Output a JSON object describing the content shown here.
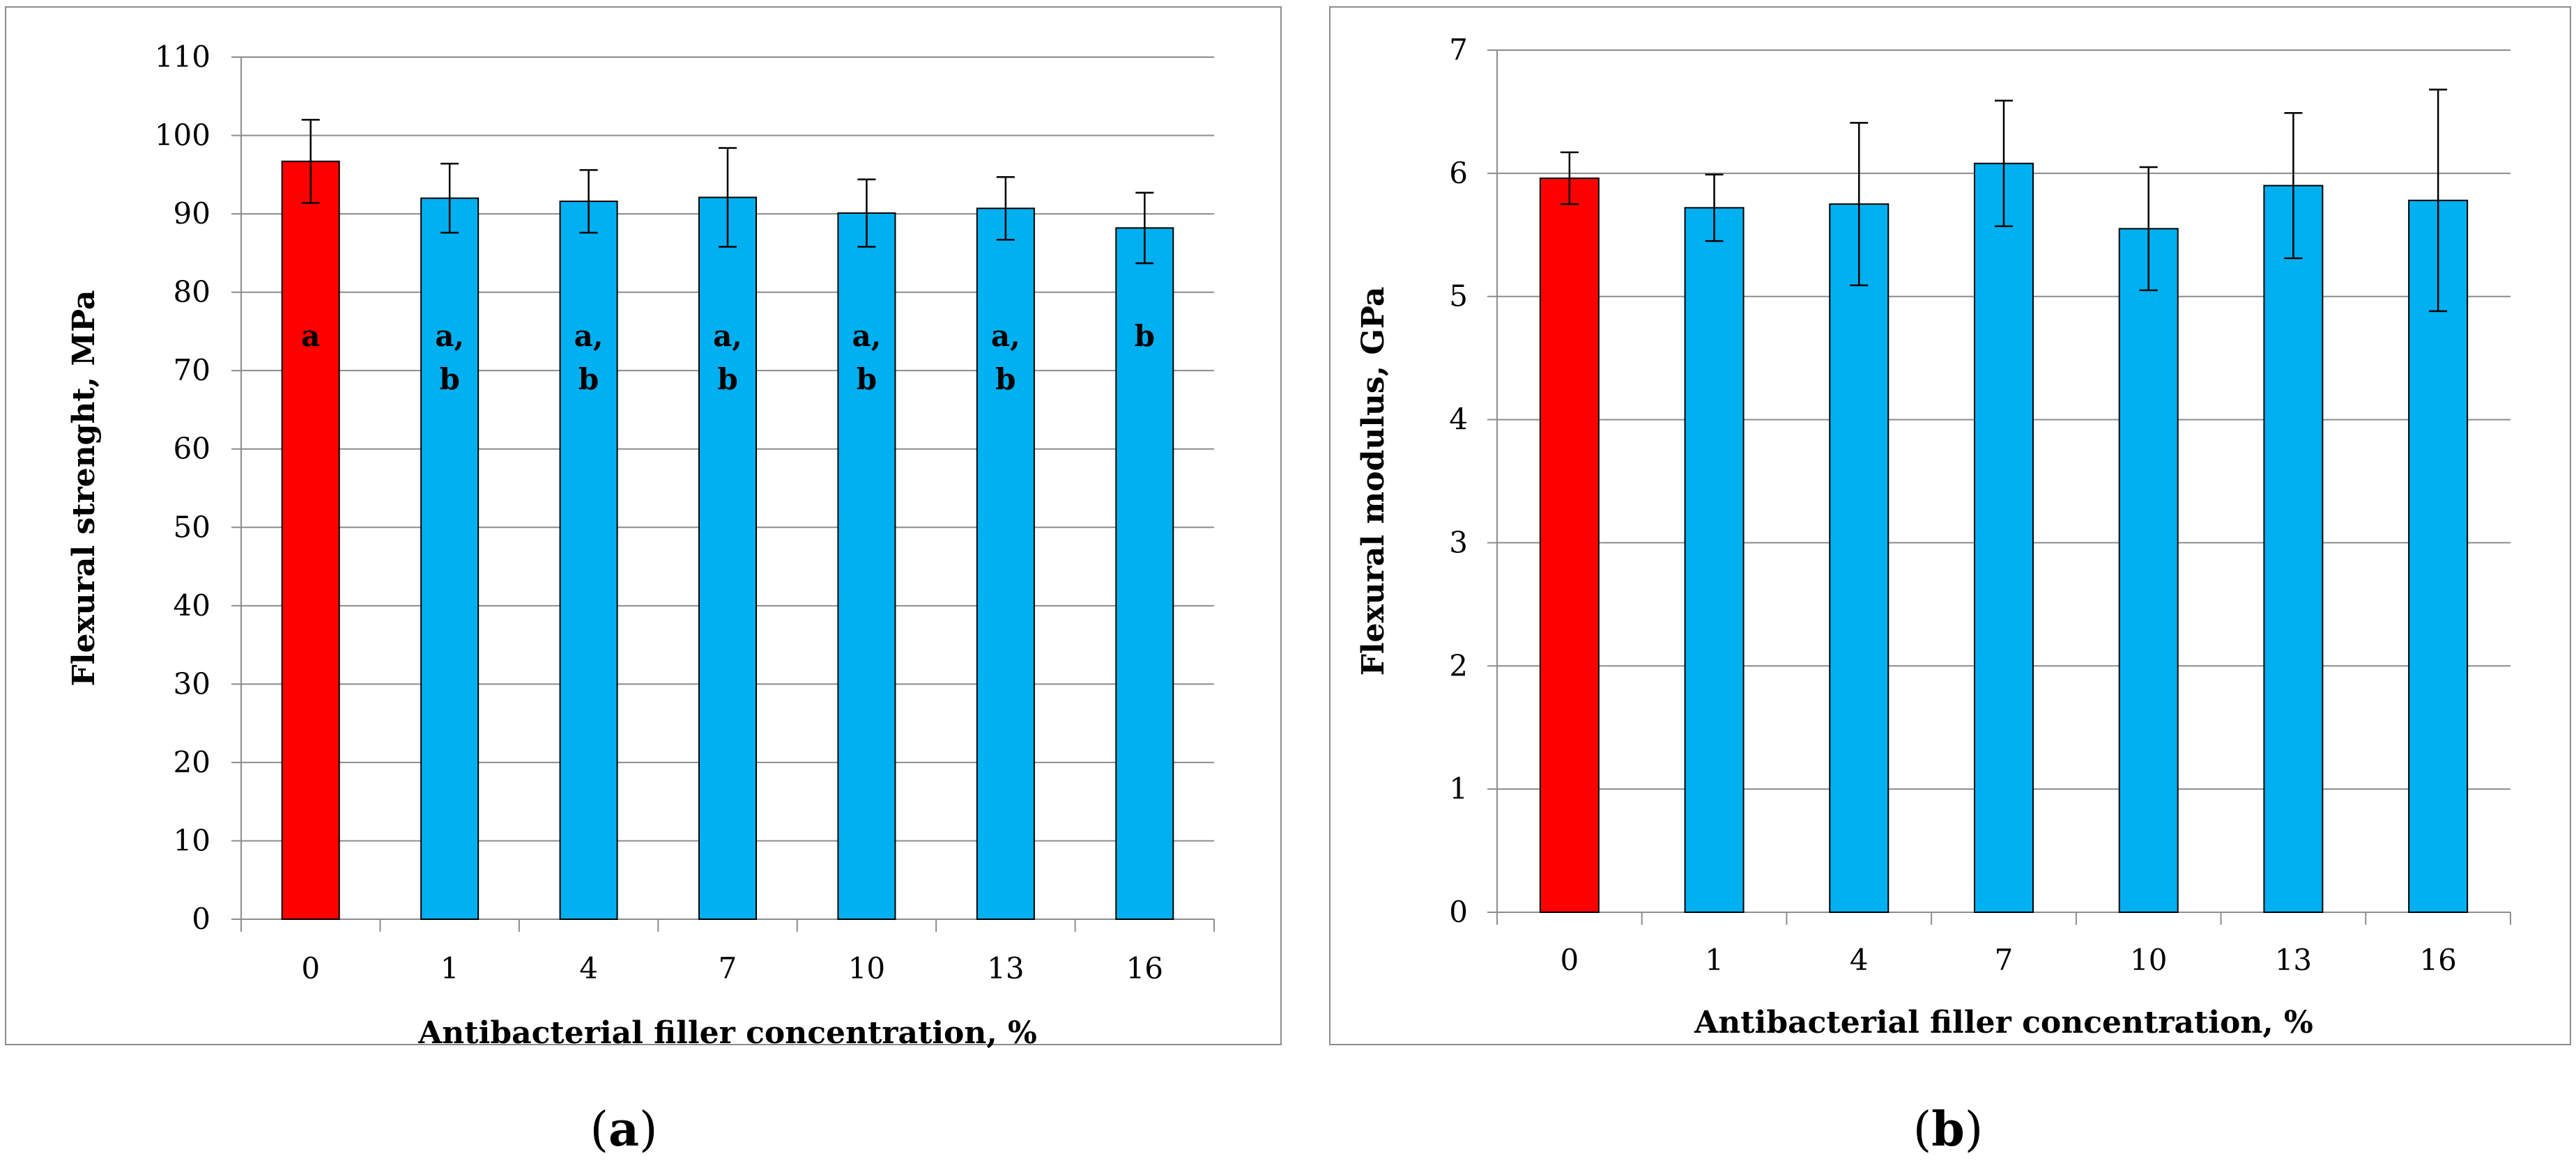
{
  "figure": {
    "panels": [
      "a",
      "b"
    ]
  },
  "colors": {
    "control": "#ff0000",
    "filler": "#00b0f0",
    "grid": "#8c8c8c",
    "frame": "#8c8c8c"
  },
  "chart_data": [
    {
      "type": "bar",
      "panel": "a",
      "categories": [
        "0",
        "1",
        "4",
        "7",
        "10",
        "13",
        "16"
      ],
      "values": [
        96.7,
        92.0,
        91.6,
        92.1,
        90.1,
        90.7,
        88.2
      ],
      "errors": [
        5.3,
        4.4,
        4.0,
        6.3,
        4.3,
        4.0,
        4.5
      ],
      "significance": [
        "a",
        "a,\nb",
        "a,\nb",
        "a,\nb",
        "a,\nb",
        "a,\nb",
        "b"
      ],
      "xlabel": "Antibacterial filler concentration, %",
      "ylabel": "Flexural strenght, MPa",
      "ylim": [
        0,
        110
      ],
      "yticks": [
        0,
        10,
        20,
        30,
        40,
        50,
        60,
        70,
        80,
        90,
        100,
        110
      ],
      "grid": true,
      "caption": "(a)"
    },
    {
      "type": "bar",
      "panel": "b",
      "categories": [
        "0",
        "1",
        "4",
        "7",
        "10",
        "13",
        "16"
      ],
      "values": [
        5.96,
        5.72,
        5.75,
        6.08,
        5.55,
        5.9,
        5.78
      ],
      "errors": [
        0.21,
        0.27,
        0.66,
        0.51,
        0.5,
        0.59,
        0.9
      ],
      "xlabel": "Antibacterial filler concentration, %",
      "ylabel": "Flexural modulus, GPa",
      "ylim": [
        0,
        7
      ],
      "yticks": [
        0,
        1,
        2,
        3,
        4,
        5,
        6,
        7
      ],
      "grid": true,
      "caption": "(b)"
    }
  ]
}
